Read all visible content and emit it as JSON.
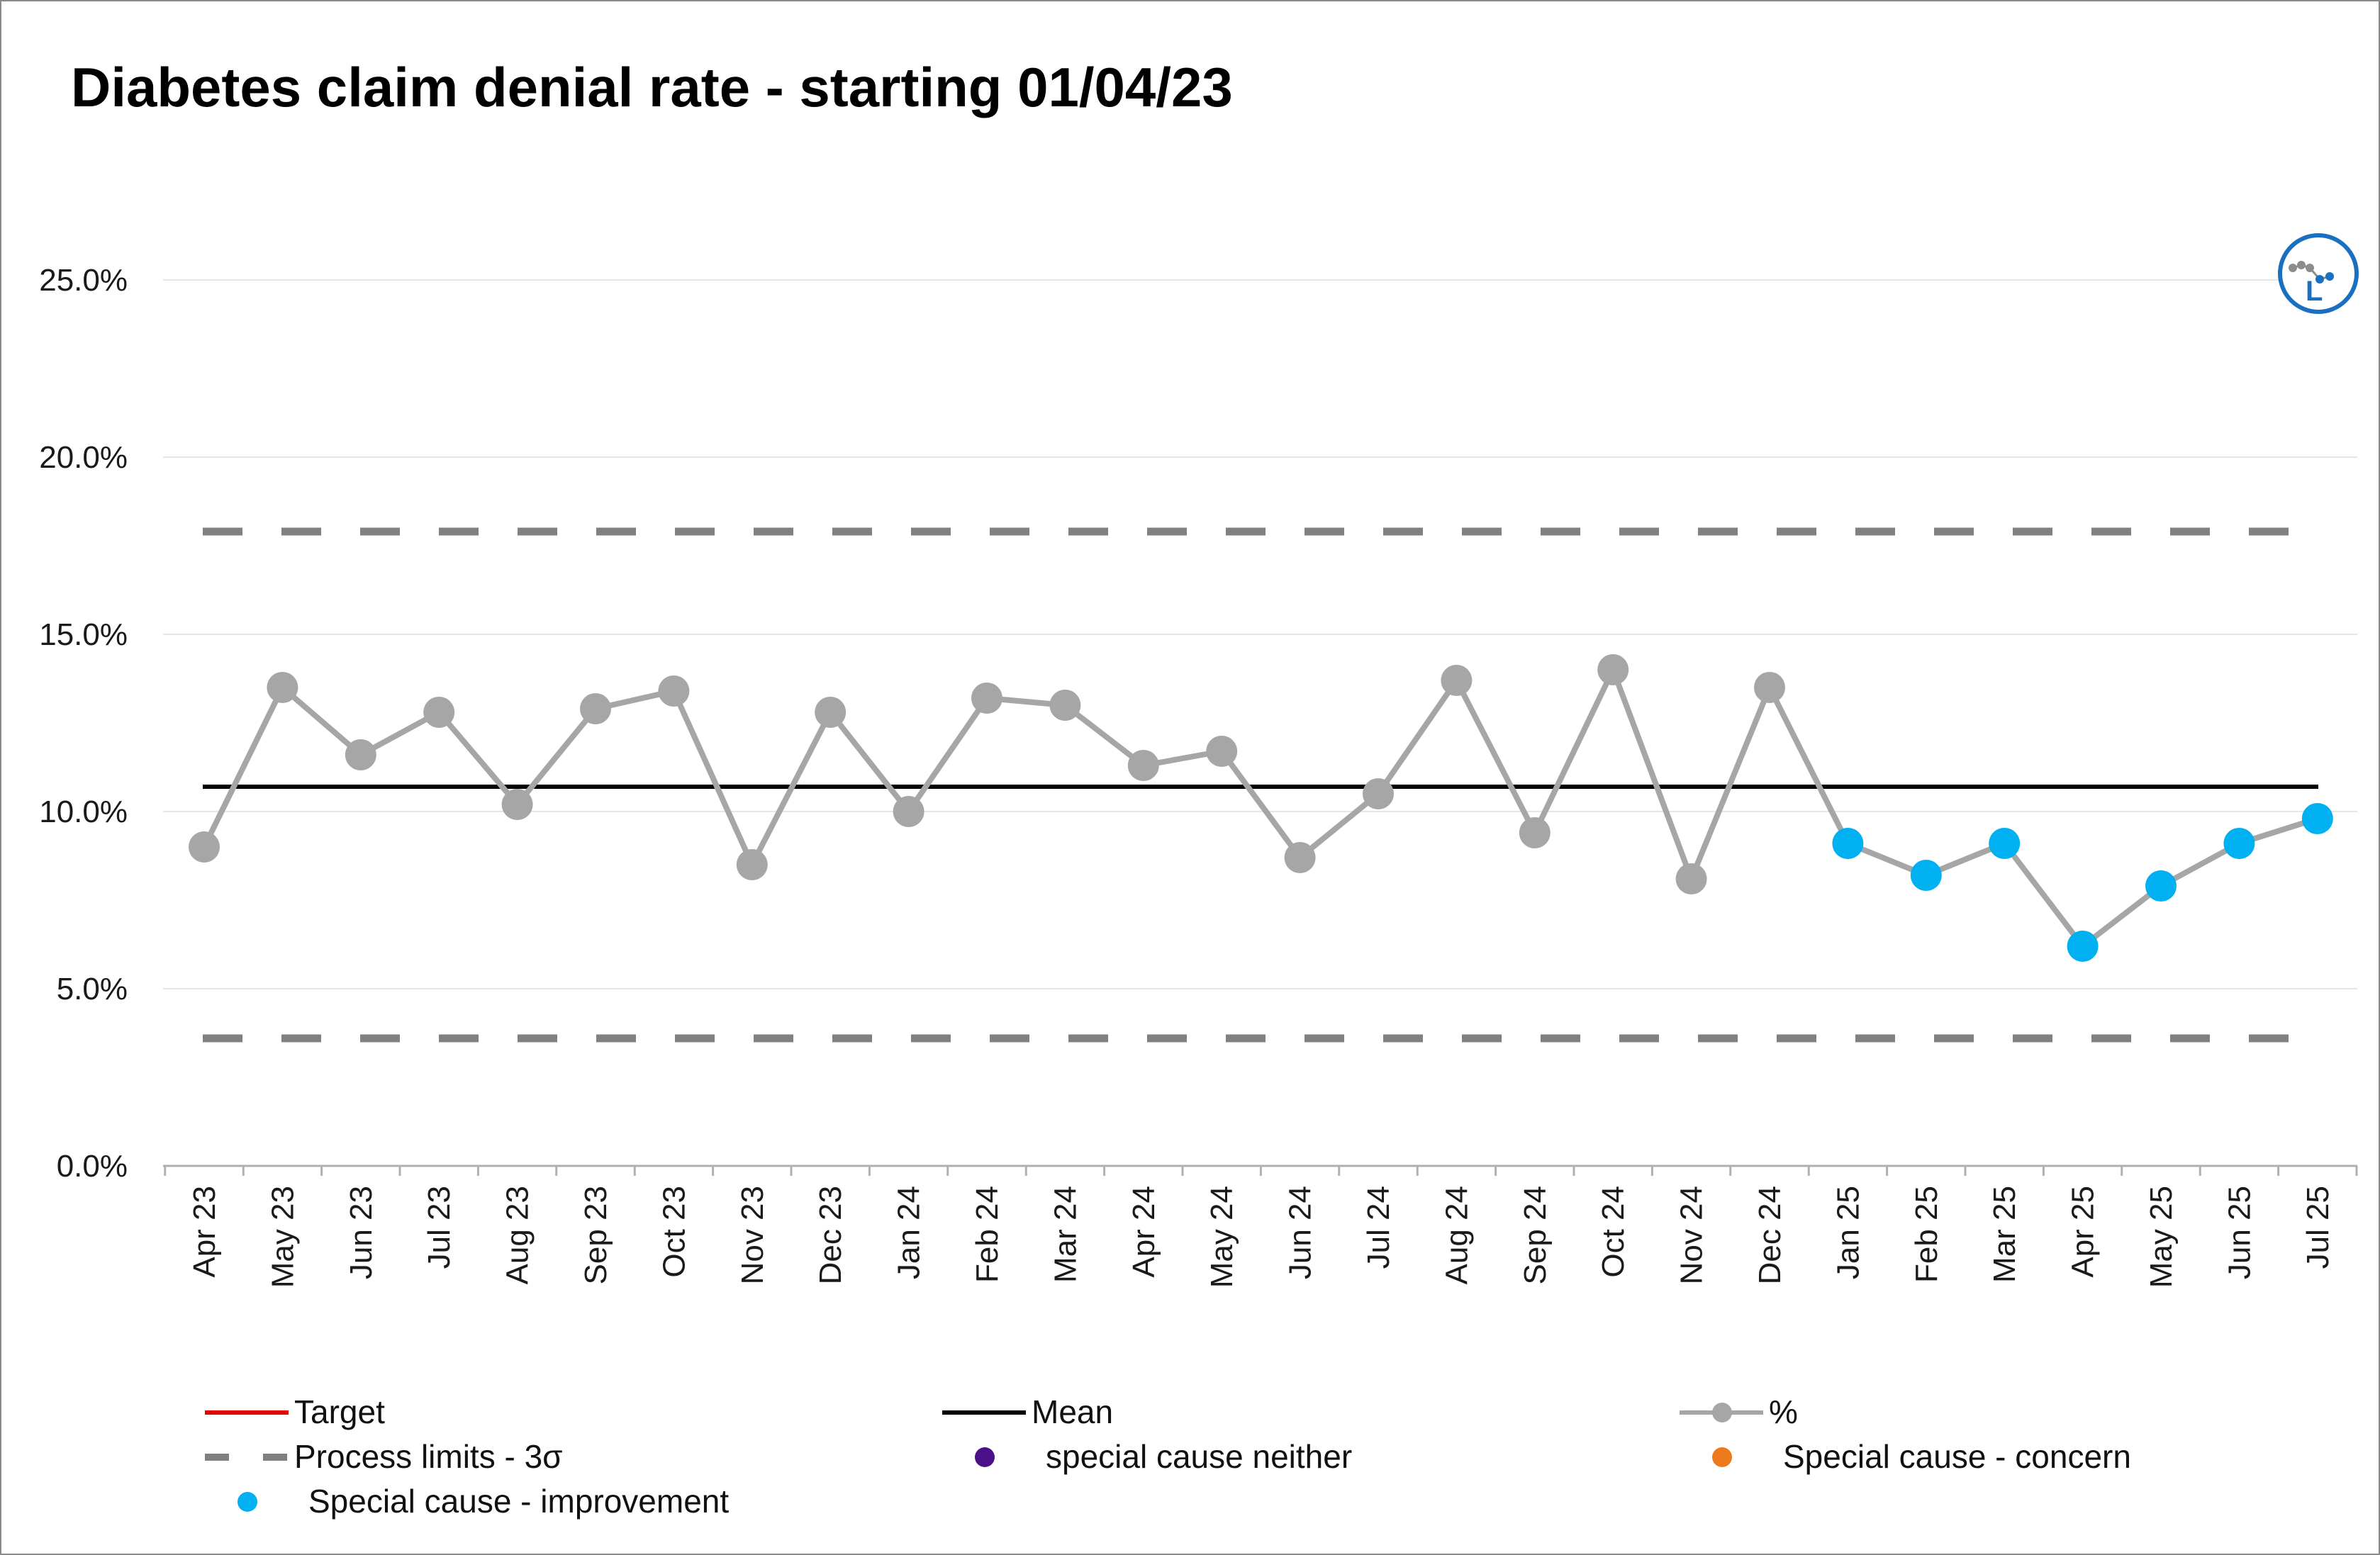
{
  "chart_data": {
    "type": "line",
    "title": "Diabetes claim denial rate - starting 01/04/23",
    "xlabel": "",
    "ylabel": "",
    "categories": [
      "Apr 23",
      "May 23",
      "Jun 23",
      "Jul 23",
      "Aug 23",
      "Sep 23",
      "Oct 23",
      "Nov 23",
      "Dec 23",
      "Jan 24",
      "Feb 24",
      "Mar 24",
      "Apr 24",
      "May 24",
      "Jun 24",
      "Jul 24",
      "Aug 24",
      "Sep 24",
      "Oct 24",
      "Nov 24",
      "Dec 24",
      "Jan 25",
      "Feb 25",
      "Mar 25",
      "Apr 25",
      "May 25",
      "Jun 25",
      "Jul 25"
    ],
    "series": [
      {
        "name": "%",
        "values": [
          9.0,
          13.5,
          11.6,
          12.8,
          10.2,
          12.9,
          13.4,
          8.5,
          12.8,
          10.0,
          13.2,
          13.0,
          11.3,
          11.7,
          8.7,
          10.5,
          13.7,
          9.4,
          14.0,
          8.1,
          13.5,
          9.1,
          8.2,
          9.1,
          6.2,
          7.9,
          9.1,
          9.8
        ],
        "point_status": [
          "none",
          "none",
          "none",
          "none",
          "none",
          "none",
          "none",
          "none",
          "none",
          "none",
          "none",
          "none",
          "none",
          "none",
          "none",
          "none",
          "none",
          "none",
          "none",
          "none",
          "none",
          "improvement",
          "improvement",
          "improvement",
          "improvement",
          "improvement",
          "improvement",
          "improvement"
        ]
      },
      {
        "name": "Mean",
        "value": 10.7
      },
      {
        "name": "Process limits - 3σ",
        "upper": 17.9,
        "lower": 3.6
      }
    ],
    "ylim": [
      0,
      25
    ],
    "yticks": [
      "0.0%",
      "5.0%",
      "10.0%",
      "15.0%",
      "20.0%",
      "25.0%"
    ],
    "ytick_values": [
      0,
      5,
      10,
      15,
      20,
      25
    ],
    "grid": true,
    "legend_placement": "bottom",
    "legend": [
      {
        "label": "Target",
        "kind": "line",
        "color": "#e00000"
      },
      {
        "label": "Mean",
        "kind": "line",
        "color": "#000000"
      },
      {
        "label": "%",
        "kind": "line-dot",
        "color": "#a6a6a6"
      },
      {
        "label": "Process limits - 3σ",
        "kind": "dash",
        "color": "#808080"
      },
      {
        "label": "special cause neither",
        "kind": "dot",
        "color": "#4b0f8a"
      },
      {
        "label": "Special cause - concern",
        "kind": "dot",
        "color": "#ec7a1c"
      },
      {
        "label": "Special cause  - improvement",
        "kind": "dot",
        "color": "#00b0f0"
      }
    ],
    "colors": {
      "series_line": "#a6a6a6",
      "normal_point": "#a6a6a6",
      "improvement_point": "#00b0f0",
      "mean": "#000000",
      "limits": "#808080",
      "grid": "#e6e6e6",
      "axis_text": "#1a1a1a"
    }
  },
  "icons": {
    "variation_icon": "spc-variation-improvement-icon",
    "variation_icon_letter": "L",
    "variation_icon_color": "#1a6fc0"
  }
}
